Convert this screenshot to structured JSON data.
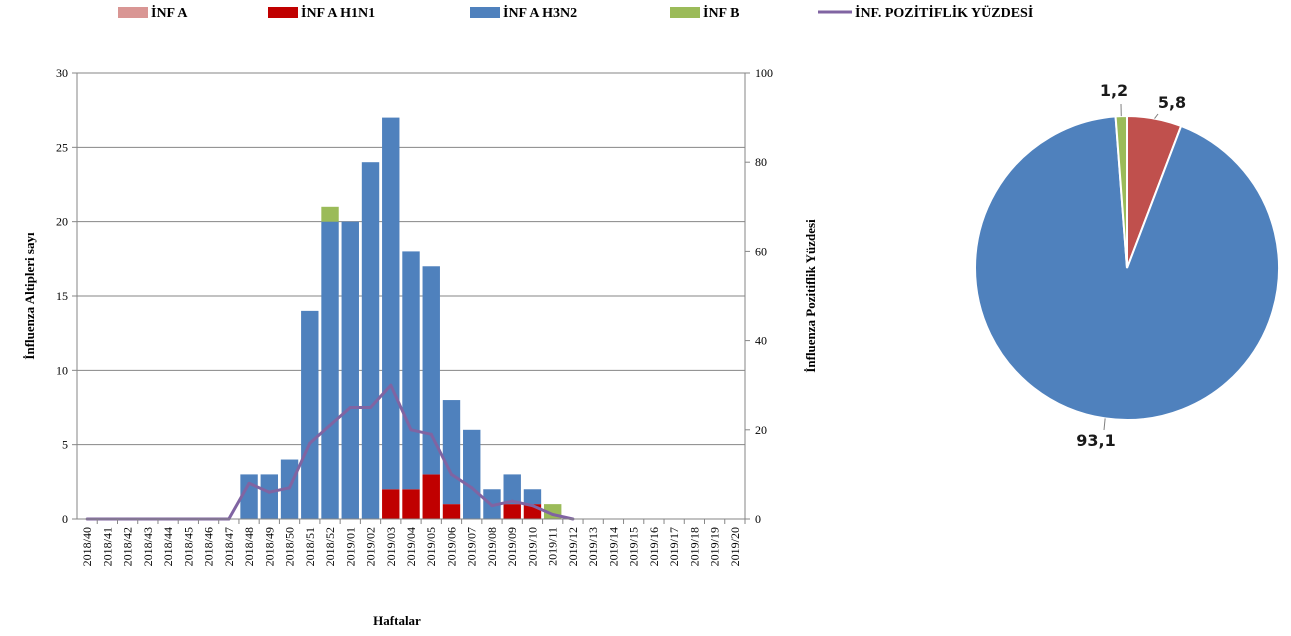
{
  "chart_data": [
    {
      "type": "bar",
      "stacked": true,
      "categories": [
        "2018/40",
        "2018/41",
        "2018/42",
        "2018/43",
        "2018/44",
        "2018/45",
        "2018/46",
        "2018/47",
        "2018/48",
        "2018/49",
        "2018/50",
        "2018/51",
        "2018/52",
        "2019/01",
        "2019/02",
        "2019/03",
        "2019/04",
        "2019/05",
        "2019/06",
        "2019/07",
        "2019/08",
        "2019/09",
        "2019/10",
        "2019/11",
        "2019/12",
        "2019/13",
        "2019/14",
        "2019/15",
        "2019/16",
        "2019/17",
        "2019/18",
        "2019/19",
        "2019/20"
      ],
      "series": [
        {
          "name": "İNF A",
          "color": "#d99694",
          "values": [
            0,
            0,
            0,
            0,
            0,
            0,
            0,
            0,
            0,
            0,
            0,
            0,
            0,
            0,
            0,
            0,
            0,
            0,
            0,
            0,
            0,
            0,
            0,
            0,
            0,
            0,
            0,
            0,
            0,
            0,
            0,
            0,
            0
          ]
        },
        {
          "name": "İNF A H1N1",
          "color": "#c00000",
          "values": [
            0,
            0,
            0,
            0,
            0,
            0,
            0,
            0,
            0,
            0,
            0,
            0,
            0,
            0,
            0,
            2,
            2,
            3,
            1,
            0,
            0,
            1,
            1,
            0,
            0,
            0,
            0,
            0,
            0,
            0,
            0,
            0,
            0
          ]
        },
        {
          "name": "İNF A H3N2",
          "color": "#4f81bd",
          "values": [
            0,
            0,
            0,
            0,
            0,
            0,
            0,
            0,
            3,
            3,
            4,
            14,
            20,
            20,
            24,
            25,
            16,
            14,
            7,
            6,
            2,
            2,
            1,
            0,
            0,
            0,
            0,
            0,
            0,
            0,
            0,
            0,
            0
          ]
        },
        {
          "name": "İNF B",
          "color": "#9bbb59",
          "values": [
            0,
            0,
            0,
            0,
            0,
            0,
            0,
            0,
            0,
            0,
            0,
            0,
            1,
            0,
            0,
            0,
            0,
            0,
            0,
            0,
            0,
            0,
            0,
            1,
            0,
            0,
            0,
            0,
            0,
            0,
            0,
            0,
            0
          ]
        }
      ],
      "line_series": {
        "name": "İNF. POZİTİFLİK YÜZDESİ",
        "color": "#8064a2",
        "axis": "right",
        "values": [
          0,
          0,
          0,
          0,
          0,
          0,
          0,
          0,
          8,
          6,
          7,
          17,
          21,
          25,
          25,
          30,
          20,
          19,
          10,
          7,
          3,
          4,
          3,
          1,
          0,
          null,
          null,
          null,
          null,
          null,
          null,
          null,
          null
        ]
      },
      "xlabel": "Haftalar",
      "ylabel": "İnfluenza Altipleri sayı",
      "y2label": "İnfluenza Pozitiflik Yüzdesi",
      "ylim": [
        0,
        30
      ],
      "yticks": [
        "0",
        "5",
        "10",
        "15",
        "20",
        "25",
        "30"
      ],
      "y2lim": [
        0,
        100
      ],
      "y2ticks": [
        "0",
        "20",
        "40",
        "60",
        "80",
        "100"
      ],
      "grid": true,
      "legend_position": "top"
    },
    {
      "type": "pie",
      "slices": [
        {
          "label": "5,8",
          "value": 5.8,
          "color": "#c0504d"
        },
        {
          "label": "93,1",
          "value": 93.1,
          "color": "#4f81bd"
        },
        {
          "label": "1,2",
          "value": 1.2,
          "color": "#9bbb59"
        }
      ]
    }
  ]
}
